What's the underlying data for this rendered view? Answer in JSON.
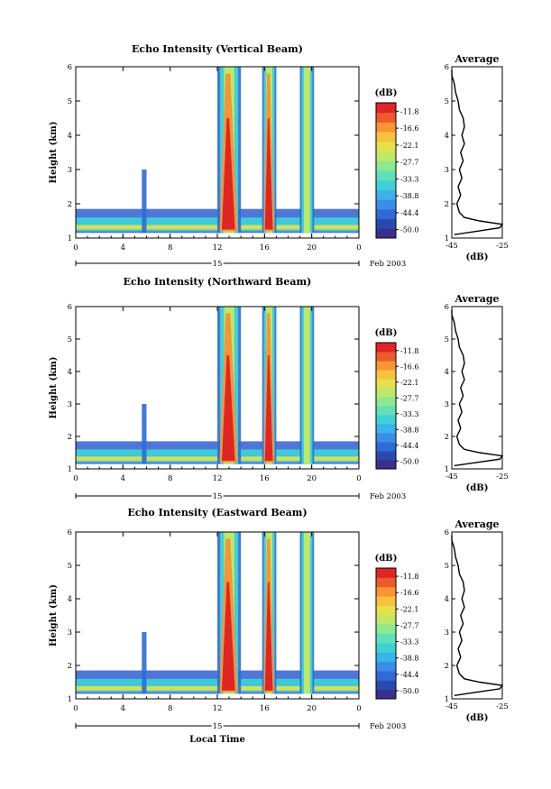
{
  "chart_data": [
    {
      "type": "heatmap",
      "title": "Echo Intensity (Vertical Beam)",
      "xlabel": "",
      "ylabel": "Height (km)",
      "x_ticks": [
        "0",
        "4",
        "8",
        "12",
        "16",
        "20",
        "0"
      ],
      "y_ticks": [
        "1",
        "2",
        "3",
        "4",
        "5",
        "6"
      ],
      "xlim": [
        0,
        24
      ],
      "ylim": [
        1,
        6
      ],
      "colorbar": {
        "unit": "(dB)",
        "ticks": [
          "-11.8",
          "-16.6",
          "-22.1",
          "-27.7",
          "-33.3",
          "-38.8",
          "-44.4",
          "-50.0"
        ]
      },
      "date": {
        "day": "15",
        "month_year": "Feb 2003"
      },
      "average_profile": {
        "title": "Average",
        "xlabel": "(dB)",
        "x_ticks": [
          "-45",
          "-25"
        ],
        "y_ticks": [
          "1",
          "2",
          "3",
          "4",
          "5",
          "6"
        ],
        "xlim": [
          -45,
          -25
        ],
        "ylim": [
          1,
          6
        ]
      }
    },
    {
      "type": "heatmap",
      "title": "Echo Intensity (Northward Beam)",
      "xlabel": "",
      "ylabel": "Height (km)",
      "x_ticks": [
        "0",
        "4",
        "8",
        "12",
        "16",
        "20",
        "0"
      ],
      "y_ticks": [
        "1",
        "2",
        "3",
        "4",
        "5",
        "6"
      ],
      "xlim": [
        0,
        24
      ],
      "ylim": [
        1,
        6
      ],
      "colorbar": {
        "unit": "(dB)",
        "ticks": [
          "-11.8",
          "-16.6",
          "-22.1",
          "-27.7",
          "-33.3",
          "-38.8",
          "-44.4",
          "-50.0"
        ]
      },
      "date": {
        "day": "15",
        "month_year": "Feb 2003"
      },
      "average_profile": {
        "title": "Average",
        "xlabel": "(dB)",
        "x_ticks": [
          "-45",
          "-25"
        ],
        "y_ticks": [
          "1",
          "2",
          "3",
          "4",
          "5",
          "6"
        ],
        "xlim": [
          -45,
          -25
        ],
        "ylim": [
          1,
          6
        ]
      }
    },
    {
      "type": "heatmap",
      "title": "Echo Intensity (Eastward Beam)",
      "xlabel": "Local Time",
      "ylabel": "Height (km)",
      "x_ticks": [
        "0",
        "4",
        "8",
        "12",
        "16",
        "20",
        "0"
      ],
      "y_ticks": [
        "1",
        "2",
        "3",
        "4",
        "5",
        "6"
      ],
      "xlim": [
        0,
        24
      ],
      "ylim": [
        1,
        6
      ],
      "colorbar": {
        "unit": "(dB)",
        "ticks": [
          "-11.8",
          "-16.6",
          "-22.1",
          "-27.7",
          "-33.3",
          "-38.8",
          "-44.4",
          "-50.0"
        ]
      },
      "date": {
        "day": "15",
        "month_year": "Feb 2003"
      },
      "average_profile": {
        "title": "Average",
        "xlabel": "(dB)",
        "x_ticks": [
          "-45",
          "-25"
        ],
        "y_ticks": [
          "1",
          "2",
          "3",
          "4",
          "5",
          "6"
        ],
        "xlim": [
          -45,
          -25
        ],
        "ylim": [
          1,
          6
        ]
      }
    }
  ],
  "profile_data": [
    {
      "height_km": [
        1.1,
        1.2,
        1.3,
        1.4,
        1.5,
        1.6,
        1.75,
        2.0,
        2.25,
        2.5,
        2.75,
        3.0,
        3.25,
        3.5,
        3.75,
        4.0,
        4.25,
        4.5,
        4.75,
        5.0,
        5.25,
        5.5,
        5.75,
        5.9
      ],
      "db": [
        -44,
        -35,
        -26,
        -25,
        -34,
        -40,
        -42,
        -43,
        -41.5,
        -42.5,
        -41,
        -42,
        -40.5,
        -41.5,
        -40,
        -41,
        -40,
        -40.5,
        -42,
        -42.5,
        -43.5,
        -44,
        -45,
        -45
      ]
    },
    {
      "height_km": [
        1.1,
        1.2,
        1.3,
        1.4,
        1.5,
        1.6,
        1.75,
        2.0,
        2.25,
        2.5,
        2.75,
        3.0,
        3.25,
        3.5,
        3.75,
        4.0,
        4.25,
        4.5,
        4.75,
        5.0,
        5.25,
        5.5,
        5.75,
        5.9
      ],
      "db": [
        -44,
        -35,
        -26,
        -25,
        -34,
        -40,
        -42,
        -43,
        -41.5,
        -42.5,
        -41,
        -42,
        -40.5,
        -41.5,
        -40,
        -41,
        -40,
        -40.5,
        -42,
        -42.5,
        -43.5,
        -44,
        -45,
        -45
      ]
    },
    {
      "height_km": [
        1.1,
        1.2,
        1.3,
        1.4,
        1.5,
        1.6,
        1.75,
        2.0,
        2.25,
        2.5,
        2.75,
        3.0,
        3.25,
        3.5,
        3.75,
        4.0,
        4.25,
        4.5,
        4.75,
        5.0,
        5.25,
        5.5,
        5.75,
        5.9
      ],
      "db": [
        -44,
        -35,
        -26,
        -25,
        -34,
        -40,
        -42,
        -43,
        -41.5,
        -42.5,
        -41,
        -42,
        -40.5,
        -41.5,
        -40,
        -41,
        -40,
        -40.5,
        -42,
        -42.5,
        -43.5,
        -44,
        -45,
        -45
      ]
    }
  ],
  "colors": {
    "colorbar_bottom_to_top": [
      "#3a2f8a",
      "#2a49b0",
      "#2f6bd6",
      "#3b8ee8",
      "#39b3ea",
      "#3fd1d6",
      "#5fe0b8",
      "#8ee88f",
      "#bde86a",
      "#e6e04a",
      "#f7c23c",
      "#f79533",
      "#ef5a2c",
      "#e02525"
    ],
    "band": [
      "#2f5fd0",
      "#3fd1d6",
      "#e6e04a",
      "#e02525"
    ]
  }
}
